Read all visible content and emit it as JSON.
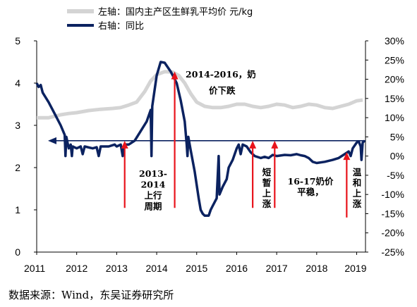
{
  "chart_data": {
    "type": "line",
    "legend": [
      {
        "name": "左轴：国内主产区生鲜乳平均价 元/kg",
        "color": "#d4d4d4"
      },
      {
        "name": "右轴：同比",
        "color": "#0b2260"
      }
    ],
    "x_ticks": [
      "2011",
      "2012",
      "2013",
      "2014",
      "2015",
      "2016",
      "2017",
      "2018",
      "2019"
    ],
    "y_left_ticks": [
      "0",
      "1",
      "2",
      "3",
      "4",
      "5"
    ],
    "y_right_ticks": [
      "-25%",
      "-20%",
      "-15%",
      "-10%",
      "-5%",
      "0%",
      "5%",
      "10%",
      "15%",
      "20%",
      "25%",
      "30%"
    ],
    "y_left_range": [
      0,
      5
    ],
    "y_right_range": [
      -25,
      30
    ],
    "reference_line_yoy": 4,
    "series": [
      {
        "axis": "left",
        "color": "#d4d4d4",
        "points": [
          [
            2011.0,
            3.18
          ],
          [
            2011.3,
            3.18
          ],
          [
            2011.6,
            3.25
          ],
          [
            2011.8,
            3.28
          ],
          [
            2012.0,
            3.3
          ],
          [
            2012.3,
            3.35
          ],
          [
            2012.6,
            3.38
          ],
          [
            2012.9,
            3.4
          ],
          [
            2013.1,
            3.42
          ],
          [
            2013.3,
            3.48
          ],
          [
            2013.5,
            3.55
          ],
          [
            2013.7,
            3.8
          ],
          [
            2013.85,
            4.05
          ],
          [
            2014.0,
            4.2
          ],
          [
            2014.2,
            4.27
          ],
          [
            2014.4,
            4.26
          ],
          [
            2014.55,
            4.18
          ],
          [
            2014.7,
            4.0
          ],
          [
            2014.85,
            3.75
          ],
          [
            2015.0,
            3.55
          ],
          [
            2015.2,
            3.45
          ],
          [
            2015.4,
            3.42
          ],
          [
            2015.6,
            3.42
          ],
          [
            2015.8,
            3.45
          ],
          [
            2016.0,
            3.5
          ],
          [
            2016.2,
            3.5
          ],
          [
            2016.4,
            3.45
          ],
          [
            2016.6,
            3.42
          ],
          [
            2016.8,
            3.45
          ],
          [
            2017.0,
            3.5
          ],
          [
            2017.2,
            3.48
          ],
          [
            2017.4,
            3.42
          ],
          [
            2017.6,
            3.45
          ],
          [
            2017.8,
            3.5
          ],
          [
            2018.0,
            3.48
          ],
          [
            2018.2,
            3.42
          ],
          [
            2018.4,
            3.4
          ],
          [
            2018.6,
            3.45
          ],
          [
            2018.8,
            3.5
          ],
          [
            2019.0,
            3.58
          ],
          [
            2019.15,
            3.6
          ]
        ]
      },
      {
        "axis": "right",
        "color": "#0b2260",
        "points": [
          [
            2011.0,
            19
          ],
          [
            2011.05,
            18
          ],
          [
            2011.1,
            18.5
          ],
          [
            2011.15,
            16.5
          ],
          [
            2011.3,
            14
          ],
          [
            2011.45,
            11
          ],
          [
            2011.6,
            8
          ],
          [
            2011.7,
            5.5
          ],
          [
            2011.72,
            0
          ],
          [
            2011.74,
            5
          ],
          [
            2011.8,
            2
          ],
          [
            2011.85,
            3
          ],
          [
            2011.88,
            0
          ],
          [
            2011.9,
            2.5
          ],
          [
            2012.0,
            2
          ],
          [
            2012.1,
            2.5
          ],
          [
            2012.15,
            0.5
          ],
          [
            2012.2,
            2.5
          ],
          [
            2012.4,
            2
          ],
          [
            2012.5,
            2.3
          ],
          [
            2012.55,
            0
          ],
          [
            2012.6,
            2.5
          ],
          [
            2012.8,
            2.5
          ],
          [
            2012.95,
            3
          ],
          [
            2013.0,
            2.5
          ],
          [
            2013.1,
            3
          ],
          [
            2013.15,
            0
          ],
          [
            2013.2,
            3
          ],
          [
            2013.3,
            3
          ],
          [
            2013.45,
            4
          ],
          [
            2013.6,
            6.5
          ],
          [
            2013.75,
            9
          ],
          [
            2013.85,
            12
          ],
          [
            2013.87,
            0
          ],
          [
            2013.89,
            13
          ],
          [
            2014.0,
            21
          ],
          [
            2014.1,
            24.5
          ],
          [
            2014.2,
            24.3
          ],
          [
            2014.35,
            22
          ],
          [
            2014.5,
            19
          ],
          [
            2014.6,
            14.5
          ],
          [
            2014.7,
            9
          ],
          [
            2014.75,
            3
          ],
          [
            2014.77,
            0
          ],
          [
            2014.79,
            5
          ],
          [
            2014.85,
            1.5
          ],
          [
            2014.95,
            -4
          ],
          [
            2015.05,
            -11
          ],
          [
            2015.1,
            -14
          ],
          [
            2015.15,
            -15
          ],
          [
            2015.2,
            -15.5
          ],
          [
            2015.3,
            -15.5
          ],
          [
            2015.35,
            -14
          ],
          [
            2015.4,
            -13
          ],
          [
            2015.5,
            -11
          ],
          [
            2015.55,
            0
          ],
          [
            2015.57,
            -10
          ],
          [
            2015.65,
            -8
          ],
          [
            2015.75,
            -6
          ],
          [
            2015.8,
            -3
          ],
          [
            2015.9,
            -1
          ],
          [
            2016.0,
            2
          ],
          [
            2016.05,
            3
          ],
          [
            2016.1,
            0.5
          ],
          [
            2016.15,
            3
          ],
          [
            2016.25,
            2.5
          ],
          [
            2016.35,
            1
          ],
          [
            2016.45,
            0
          ],
          [
            2016.6,
            -0.5
          ],
          [
            2016.7,
            -0.2
          ],
          [
            2016.8,
            -0.5
          ],
          [
            2016.9,
            0.3
          ],
          [
            2017.0,
            0
          ],
          [
            2017.2,
            0.3
          ],
          [
            2017.35,
            0.2
          ],
          [
            2017.5,
            0.5
          ],
          [
            2017.6,
            0.2
          ],
          [
            2017.7,
            0
          ],
          [
            2017.8,
            -0.5
          ],
          [
            2017.9,
            -1.5
          ],
          [
            2018.0,
            -1.8
          ],
          [
            2018.2,
            -1.5
          ],
          [
            2018.4,
            -1
          ],
          [
            2018.55,
            -0.5
          ],
          [
            2018.7,
            0.5
          ],
          [
            2018.8,
            1.2
          ],
          [
            2018.85,
            0
          ],
          [
            2018.9,
            2
          ],
          [
            2019.0,
            3.5
          ],
          [
            2019.05,
            3.8
          ],
          [
            2019.1,
            2.5
          ],
          [
            2019.12,
            -1
          ],
          [
            2019.15,
            3.5
          ],
          [
            2019.2,
            4
          ]
        ]
      }
    ],
    "annotations": [
      {
        "text": [
          "2014-2016，奶",
          "价下跌"
        ],
        "arrow_x": 2014.45,
        "arrow_from": -13.5,
        "arrow_to": 22
      },
      {
        "text": [
          "2013-",
          "2014",
          "上行",
          "周期"
        ],
        "arrow_x": 2013.2,
        "arrow_from": -13.5,
        "arrow_to": 4
      },
      {
        "text": [
          "短",
          "暂",
          "上",
          "涨"
        ],
        "arrow_x": 2016.4,
        "arrow_from": -13.5,
        "arrow_to": 4
      },
      {
        "text": [
          "16-17奶价",
          "平稳，"
        ],
        "arrow_x": 2016.95,
        "arrow_from": -13.5,
        "arrow_to": 4
      },
      {
        "text": [
          "温",
          "和",
          "上",
          "涨"
        ],
        "arrow_x": 2018.75,
        "arrow_from": -16,
        "arrow_to": 1
      }
    ]
  },
  "source": "数据来源：Wind，东吴证券研究所"
}
